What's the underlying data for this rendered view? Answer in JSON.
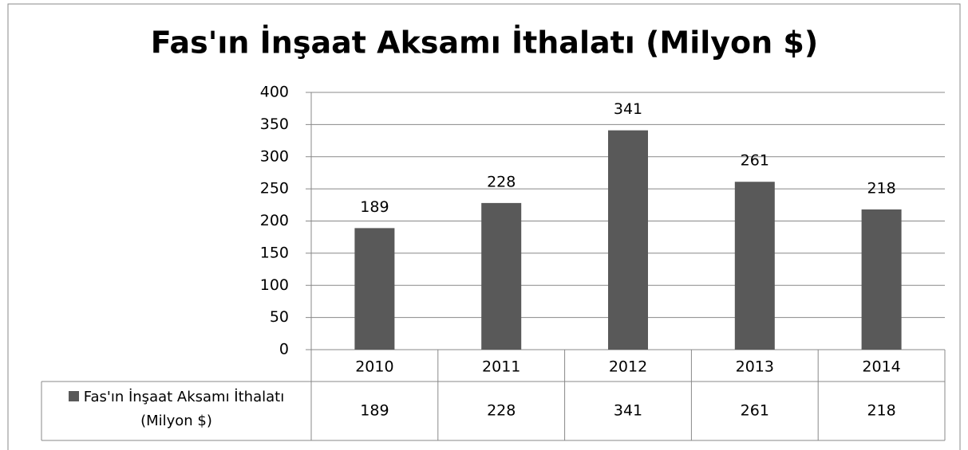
{
  "chart_data": {
    "type": "bar",
    "title": "Fas'ın İnşaat Aksamı İthalatı (Milyon $)",
    "categories": [
      "2010",
      "2011",
      "2012",
      "2013",
      "2014"
    ],
    "series": [
      {
        "name": "Fas'ın İnşaat Aksamı İthalatı (Milyon $)",
        "color": "#595959",
        "values": [
          189,
          228,
          341,
          261,
          218
        ]
      }
    ],
    "ylim": [
      0,
      400
    ],
    "yticks": [
      0,
      50,
      100,
      150,
      200,
      250,
      300,
      350,
      400
    ],
    "grid": true,
    "data_labels": true,
    "data_table": true
  }
}
